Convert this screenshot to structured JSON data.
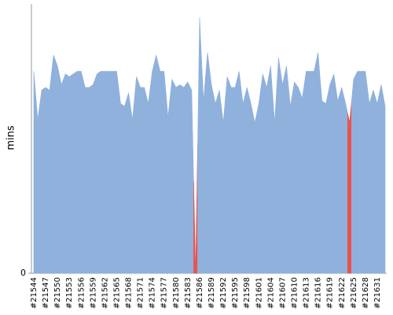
{
  "chart_data": {
    "type": "area",
    "y_label": "mins",
    "categories": [
      "#21544",
      null,
      null,
      "#21547",
      null,
      null,
      "#21550",
      null,
      null,
      "#21553",
      null,
      null,
      "#21556",
      null,
      null,
      "#21559",
      null,
      null,
      "#21562",
      null,
      null,
      "#21565",
      null,
      null,
      "#21568",
      null,
      null,
      "#21571",
      null,
      null,
      "#21574",
      null,
      null,
      "#21577",
      null,
      null,
      "#21580",
      null,
      null,
      "#21583",
      null,
      null,
      "#21586",
      null,
      null,
      "#21589",
      null,
      null,
      "#21592",
      null,
      null,
      "#21595",
      null,
      null,
      "#21598",
      null,
      null,
      "#21601",
      null,
      null,
      "#21604",
      null,
      null,
      "#21607",
      null,
      null,
      "#21610",
      null,
      null,
      "#21613",
      null,
      null,
      "#21616",
      null,
      null,
      "#21619",
      null,
      null,
      "#21622",
      null,
      null,
      "#21625",
      null,
      null,
      "#21628",
      null,
      null,
      "#21631",
      null,
      null
    ],
    "values": [
      7.5,
      5.7,
      6.8,
      6.9,
      6.8,
      8.1,
      7.7,
      7.0,
      7.4,
      7.3,
      7.4,
      7.5,
      7.5,
      6.9,
      6.9,
      7.0,
      7.4,
      7.5,
      7.5,
      7.5,
      7.5,
      7.5,
      6.3,
      6.2,
      6.7,
      5.7,
      7.3,
      6.9,
      6.9,
      6.3,
      7.5,
      8.1,
      7.5,
      7.5,
      5.8,
      7.2,
      6.9,
      7.0,
      6.9,
      7.1,
      6.8,
      0,
      9.5,
      6.4,
      8.2,
      7.0,
      6.3,
      6.8,
      5.6,
      7.3,
      6.9,
      6.9,
      7.5,
      6.3,
      6.9,
      6.3,
      5.6,
      6.3,
      7.4,
      6.9,
      7.7,
      5.6,
      8.0,
      7.0,
      7.7,
      6.2,
      7.1,
      6.9,
      6.5,
      7.5,
      7.5,
      7.5,
      8.2,
      6.4,
      6.3,
      7.0,
      7.4,
      6.4,
      6.9,
      6.3,
      5.6,
      7.2,
      7.5,
      7.5,
      7.5,
      6.3,
      6.8,
      6.3,
      7.0,
      6.2
    ],
    "colors": [
      "#8fb1dc",
      "#8fb1dc",
      "#8fb1dc",
      "#8fb1dc",
      "#8fb1dc",
      "#8fb1dc",
      "#8fb1dc",
      "#8fb1dc",
      "#8fb1dc",
      "#8fb1dc",
      "#8fb1dc",
      "#8fb1dc",
      "#8fb1dc",
      "#8fb1dc",
      "#8fb1dc",
      "#8fb1dc",
      "#8fb1dc",
      "#8fb1dc",
      "#8fb1dc",
      "#8fb1dc",
      "#8fb1dc",
      "#8fb1dc",
      "#8fb1dc",
      "#8fb1dc",
      "#8fb1dc",
      "#8fb1dc",
      "#8fb1dc",
      "#8fb1dc",
      "#8fb1dc",
      "#8fb1dc",
      "#8fb1dc",
      "#8fb1dc",
      "#8fb1dc",
      "#8fb1dc",
      "#8fb1dc",
      "#8fb1dc",
      "#8fb1dc",
      "#8fb1dc",
      "#8fb1dc",
      "#8fb1dc",
      "#8fb1dc",
      "#e8534f",
      "#8fb1dc",
      "#8fb1dc",
      "#8fb1dc",
      "#8fb1dc",
      "#8fb1dc",
      "#8fb1dc",
      "#8fb1dc",
      "#8fb1dc",
      "#8fb1dc",
      "#8fb1dc",
      "#8fb1dc",
      "#8fb1dc",
      "#8fb1dc",
      "#8fb1dc",
      "#8fb1dc",
      "#8fb1dc",
      "#8fb1dc",
      "#8fb1dc",
      "#8fb1dc",
      "#8fb1dc",
      "#8fb1dc",
      "#8fb1dc",
      "#8fb1dc",
      "#8fb1dc",
      "#8fb1dc",
      "#8fb1dc",
      "#8fb1dc",
      "#8fb1dc",
      "#8fb1dc",
      "#8fb1dc",
      "#8fb1dc",
      "#8fb1dc",
      "#8fb1dc",
      "#8fb1dc",
      "#8fb1dc",
      "#8fb1dc",
      "#8fb1dc",
      "#8fb1dc",
      "#e8534f",
      "#8fb1dc",
      "#8fb1dc",
      "#8fb1dc",
      "#8fb1dc",
      "#8fb1dc",
      "#8fb1dc",
      "#8fb1dc",
      "#8fb1dc",
      "#8fb1dc"
    ],
    "ylim": [
      0,
      10
    ],
    "yticks": [
      0
    ]
  }
}
